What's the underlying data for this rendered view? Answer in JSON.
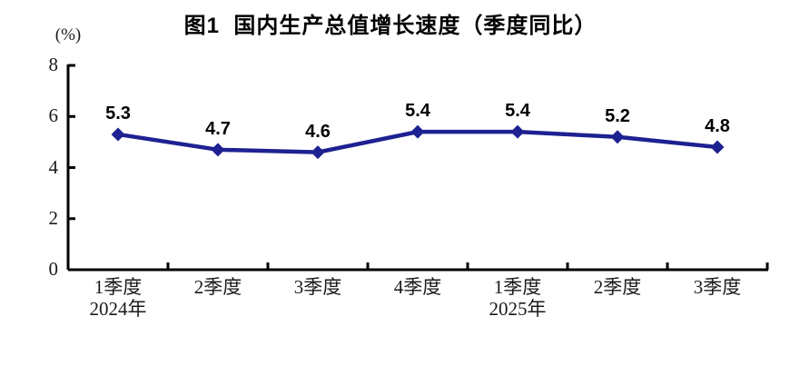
{
  "chart_data": {
    "type": "line",
    "title": "图1  国内生产总值增长速度（季度同比）",
    "ylabel": "(%)",
    "ylim": [
      0,
      8
    ],
    "yticks": [
      0,
      2,
      4,
      6,
      8
    ],
    "grid": false,
    "legend_position": "none",
    "categories": [
      "1季度\n2024年",
      "2季度",
      "3季度",
      "4季度",
      "1季度\n2025年",
      "2季度",
      "3季度"
    ],
    "values": [
      5.3,
      4.7,
      4.6,
      5.4,
      5.4,
      5.2,
      4.8
    ],
    "data_labels": [
      "5.3",
      "4.7",
      "4.6",
      "5.4",
      "5.4",
      "5.2",
      "4.8"
    ],
    "marker": "diamond",
    "line_color": "#1e2191",
    "axis_color": "#000000",
    "label_color": "#000000",
    "tick_label_color": "#1a1a1a"
  }
}
